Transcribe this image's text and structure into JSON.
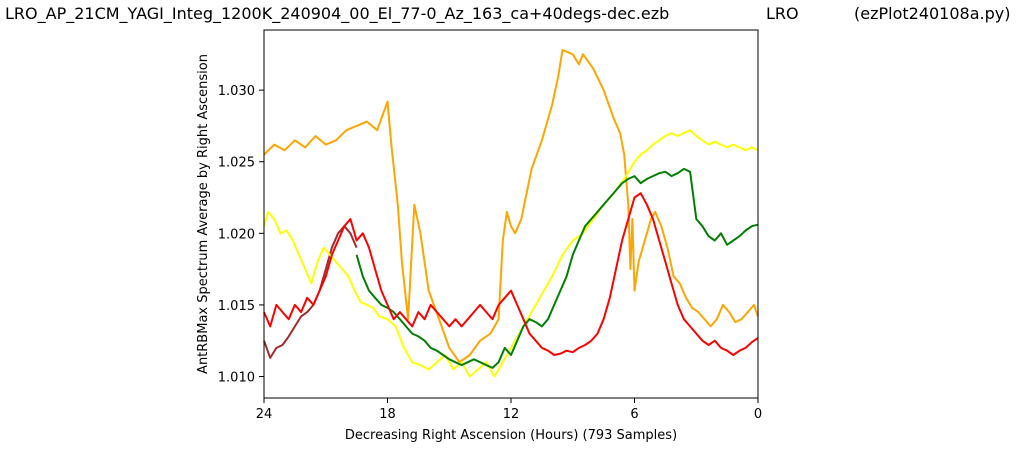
{
  "header": {
    "file_name": "LRO_AP_21CM_YAGI_Integ_1200K_240904_00_El_77-0_Az_163_ca+40degs-dec.ezb",
    "site": "LRO",
    "program": "(ezPlot240108a.py)"
  },
  "chart_data": {
    "type": "line",
    "title": "",
    "xlabel": "Decreasing Right Ascension (Hours) (793 Samples)",
    "ylabel": "AntRBMax Spectrum Average by Right Ascension",
    "xlim": [
      24,
      0
    ],
    "ylim": [
      1.0085,
      1.0342
    ],
    "x_ticks": [
      24,
      18,
      12,
      6,
      0
    ],
    "x_tick_labels": [
      "24",
      "18",
      "12",
      "6",
      "0"
    ],
    "y_ticks": [
      1.01,
      1.015,
      1.02,
      1.025,
      1.03
    ],
    "y_tick_labels": [
      "1.010",
      "1.015",
      "1.020",
      "1.025",
      "1.030"
    ],
    "grid": false,
    "legend": false,
    "series": [
      {
        "color": "#a52a2a",
        "x": [
          24.0,
          23.7,
          23.4,
          23.1,
          22.8,
          22.5,
          22.2,
          21.9,
          21.6,
          21.3,
          21.0,
          20.7,
          20.4,
          20.1,
          19.8,
          19.5
        ],
        "y": [
          1.0125,
          1.0113,
          1.012,
          1.0122,
          1.0128,
          1.0135,
          1.0142,
          1.0145,
          1.015,
          1.016,
          1.0175,
          1.019,
          1.02,
          1.0205,
          1.02,
          1.019
        ]
      },
      {
        "color": "#ffa500",
        "x": [
          24.0,
          23.5,
          23.0,
          22.5,
          22.0,
          21.5,
          21.0,
          20.5,
          20.0,
          19.5,
          19.0,
          18.5,
          18.0,
          17.8,
          17.5,
          17.3,
          17.0,
          16.7,
          16.4,
          16.0,
          15.5,
          15.0,
          14.5,
          14.0,
          13.5,
          13.0,
          12.6,
          12.4,
          12.2,
          12.0,
          11.8,
          11.5,
          11.0,
          10.5,
          10.0,
          9.7,
          9.5,
          9.0,
          8.7,
          8.5,
          8.0,
          7.5,
          7.0,
          6.7,
          6.5,
          6.3,
          6.2,
          6.1,
          6.0,
          5.8,
          5.5,
          5.2,
          5.0,
          4.7,
          4.4,
          4.1,
          3.8,
          3.5,
          3.2,
          2.9,
          2.6,
          2.3,
          2.0,
          1.7,
          1.4,
          1.1,
          0.8,
          0.5,
          0.2,
          0.0
        ],
        "y": [
          1.0255,
          1.0262,
          1.0258,
          1.0265,
          1.026,
          1.0268,
          1.0262,
          1.0265,
          1.0272,
          1.0275,
          1.0278,
          1.0272,
          1.0292,
          1.026,
          1.022,
          1.018,
          1.014,
          1.022,
          1.02,
          1.016,
          1.014,
          1.012,
          1.011,
          1.0115,
          1.0125,
          1.013,
          1.014,
          1.0195,
          1.0215,
          1.0205,
          1.02,
          1.021,
          1.0245,
          1.0265,
          1.029,
          1.031,
          1.0328,
          1.0325,
          1.0318,
          1.0325,
          1.0315,
          1.03,
          1.028,
          1.027,
          1.0255,
          1.022,
          1.0175,
          1.021,
          1.016,
          1.018,
          1.0195,
          1.021,
          1.0215,
          1.0205,
          1.019,
          1.017,
          1.0165,
          1.0155,
          1.0148,
          1.0145,
          1.014,
          1.0135,
          1.014,
          1.015,
          1.0145,
          1.0138,
          1.014,
          1.0145,
          1.015,
          1.0142
        ]
      },
      {
        "color": "#ffff00",
        "x": [
          24.0,
          23.8,
          23.5,
          23.2,
          22.9,
          22.6,
          22.3,
          22.0,
          21.7,
          21.4,
          21.1,
          20.8,
          20.5,
          20.2,
          19.9,
          19.6,
          19.3,
          19.0,
          18.7,
          18.4,
          18.0,
          17.6,
          17.2,
          16.8,
          16.4,
          16.0,
          15.6,
          15.2,
          14.8,
          14.4,
          14.0,
          13.6,
          13.2,
          12.8,
          12.4,
          12.0,
          11.6,
          11.2,
          10.8,
          10.4,
          10.0,
          9.5,
          9.0,
          8.5,
          8.0,
          7.5,
          7.0,
          6.5,
          6.2,
          6.0,
          5.7,
          5.4,
          5.1,
          4.8,
          4.5,
          4.2,
          3.9,
          3.6,
          3.3,
          3.0,
          2.7,
          2.4,
          2.1,
          1.8,
          1.5,
          1.2,
          0.9,
          0.6,
          0.3,
          0.0
        ],
        "y": [
          1.0205,
          1.0215,
          1.021,
          1.02,
          1.0202,
          1.0195,
          1.0185,
          1.0175,
          1.0165,
          1.018,
          1.019,
          1.0185,
          1.018,
          1.0175,
          1.017,
          1.016,
          1.0152,
          1.015,
          1.0148,
          1.0142,
          1.014,
          1.0135,
          1.012,
          1.011,
          1.0108,
          1.0105,
          1.011,
          1.0115,
          1.0105,
          1.011,
          1.01,
          1.0105,
          1.011,
          1.01,
          1.011,
          1.012,
          1.013,
          1.014,
          1.015,
          1.016,
          1.017,
          1.0185,
          1.0195,
          1.02,
          1.021,
          1.022,
          1.0228,
          1.0238,
          1.0245,
          1.025,
          1.0255,
          1.0258,
          1.0262,
          1.0265,
          1.0268,
          1.027,
          1.0268,
          1.027,
          1.0272,
          1.0268,
          1.0265,
          1.0262,
          1.0264,
          1.0262,
          1.026,
          1.0262,
          1.026,
          1.0258,
          1.026,
          1.0258
        ]
      },
      {
        "color": "#008000",
        "x": [
          19.5,
          19.2,
          18.9,
          18.6,
          18.3,
          18.0,
          17.7,
          17.4,
          17.1,
          16.8,
          16.5,
          16.2,
          15.9,
          15.6,
          15.3,
          15.0,
          14.7,
          14.4,
          14.1,
          13.8,
          13.5,
          13.2,
          12.9,
          12.6,
          12.3,
          12.0,
          11.7,
          11.4,
          11.1,
          10.8,
          10.5,
          10.2,
          9.9,
          9.6,
          9.3,
          9.0,
          8.7,
          8.4,
          8.1,
          7.8,
          7.5,
          7.2,
          6.9,
          6.6,
          6.3,
          6.0,
          5.7,
          5.4,
          5.1,
          4.8,
          4.5,
          4.2,
          3.9,
          3.6,
          3.3,
          3.0,
          2.7,
          2.4,
          2.1,
          1.8,
          1.5,
          1.2,
          0.9,
          0.6,
          0.3,
          0.0
        ],
        "y": [
          1.0185,
          1.017,
          1.016,
          1.0155,
          1.015,
          1.0148,
          1.0145,
          1.014,
          1.0135,
          1.013,
          1.0128,
          1.0125,
          1.012,
          1.0118,
          1.0115,
          1.0112,
          1.011,
          1.0108,
          1.011,
          1.0112,
          1.011,
          1.0108,
          1.0106,
          1.011,
          1.012,
          1.0115,
          1.0125,
          1.0135,
          1.014,
          1.0138,
          1.0135,
          1.014,
          1.015,
          1.016,
          1.017,
          1.0185,
          1.0195,
          1.0205,
          1.021,
          1.0215,
          1.022,
          1.0225,
          1.023,
          1.0235,
          1.0238,
          1.024,
          1.0235,
          1.0238,
          1.024,
          1.0242,
          1.0243,
          1.024,
          1.0242,
          1.0245,
          1.0243,
          1.021,
          1.0205,
          1.0198,
          1.0195,
          1.02,
          1.0192,
          1.0195,
          1.0198,
          1.0202,
          1.0205,
          1.0206
        ]
      },
      {
        "color": "#ff0000",
        "x": [
          24.0,
          23.7,
          23.4,
          23.1,
          22.8,
          22.5,
          22.2,
          21.9,
          21.6,
          21.3,
          21.0,
          20.7,
          20.4,
          20.1,
          19.8,
          19.5,
          19.2,
          18.9,
          18.6,
          18.3,
          18.0,
          17.7,
          17.4,
          17.1,
          16.8,
          16.5,
          16.2,
          15.9,
          15.6,
          15.3,
          15.0,
          14.7,
          14.4,
          14.1,
          13.8,
          13.5,
          13.2,
          12.9,
          12.6,
          12.3,
          12.0,
          11.7,
          11.4,
          11.1,
          10.8,
          10.5,
          10.2,
          9.9,
          9.6,
          9.3,
          9.0,
          8.7,
          8.4,
          8.1,
          7.8,
          7.5,
          7.2,
          6.9,
          6.6,
          6.3,
          6.0,
          5.7,
          5.4,
          5.1,
          4.8,
          4.5,
          4.2,
          3.9,
          3.6,
          3.3,
          3.0,
          2.7,
          2.4,
          2.1,
          1.8,
          1.5,
          1.2,
          0.9,
          0.6,
          0.3,
          0.0
        ],
        "y": [
          1.0145,
          1.0135,
          1.015,
          1.0145,
          1.014,
          1.015,
          1.0145,
          1.0155,
          1.015,
          1.016,
          1.017,
          1.0185,
          1.0195,
          1.0205,
          1.021,
          1.0195,
          1.02,
          1.019,
          1.0175,
          1.016,
          1.015,
          1.014,
          1.0145,
          1.014,
          1.0135,
          1.0145,
          1.014,
          1.015,
          1.0145,
          1.014,
          1.0135,
          1.014,
          1.0135,
          1.014,
          1.0145,
          1.015,
          1.0145,
          1.014,
          1.015,
          1.0155,
          1.016,
          1.015,
          1.014,
          1.013,
          1.0125,
          1.012,
          1.0118,
          1.0115,
          1.0116,
          1.0118,
          1.0117,
          1.012,
          1.0122,
          1.0125,
          1.013,
          1.014,
          1.0155,
          1.0175,
          1.0195,
          1.021,
          1.0225,
          1.0228,
          1.022,
          1.021,
          1.0195,
          1.018,
          1.0165,
          1.015,
          1.014,
          1.0135,
          1.013,
          1.0125,
          1.0122,
          1.0125,
          1.012,
          1.0118,
          1.0115,
          1.0118,
          1.012,
          1.0124,
          1.0127
        ]
      }
    ]
  }
}
